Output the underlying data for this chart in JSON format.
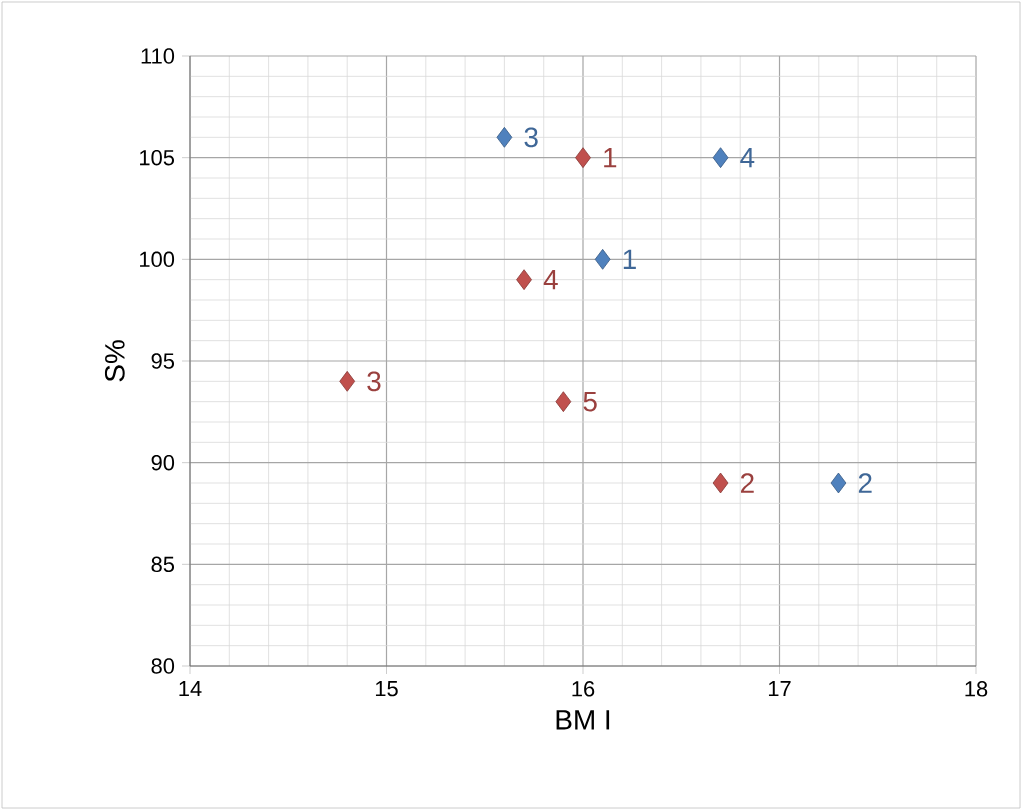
{
  "chart_data": {
    "type": "scatter",
    "xlabel": "BM I",
    "ylabel": "S%",
    "xlim": [
      14,
      18
    ],
    "xticks": [
      14,
      15,
      16,
      17,
      18
    ],
    "ylim": [
      80,
      110
    ],
    "yticks": [
      80,
      85,
      90,
      95,
      100,
      105,
      110
    ],
    "grid": true,
    "marker": "diamond",
    "series": [
      {
        "color": "#4f81bd",
        "x": [
          16.1,
          17.3,
          15.6,
          16.7
        ],
        "values": [
          100,
          89,
          106,
          105
        ]
      },
      {
        "color": "#c0504d",
        "x": [
          16.0,
          16.7,
          14.8,
          15.7,
          15.9
        ],
        "values": [
          105,
          89,
          94,
          99,
          93
        ]
      }
    ],
    "annotations": [
      {
        "text": "1",
        "x": 16.1,
        "y": 100
      },
      {
        "text": "2",
        "x": 17.3,
        "y": 89
      },
      {
        "text": "3",
        "x": 15.6,
        "y": 106
      },
      {
        "text": "4",
        "x": 16.7,
        "y": 105
      },
      {
        "text": "1",
        "x": 16.0,
        "y": 105
      },
      {
        "text": "2",
        "x": 16.7,
        "y": 89
      },
      {
        "text": "3",
        "x": 14.8,
        "y": 94
      },
      {
        "text": "4",
        "x": 15.7,
        "y": 99
      },
      {
        "text": "5",
        "x": 15.9,
        "y": 93
      }
    ]
  }
}
